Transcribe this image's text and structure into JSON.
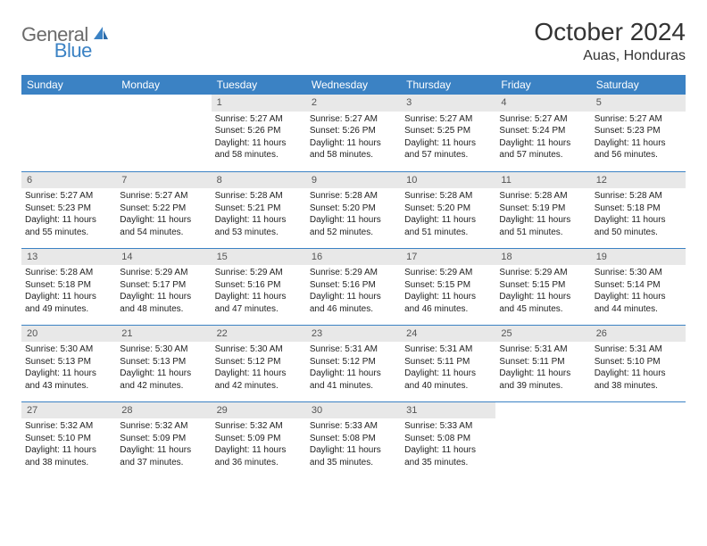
{
  "brand": {
    "part1": "General",
    "part2": "Blue"
  },
  "title": "October 2024",
  "location": "Auas, Honduras",
  "dayHeaders": [
    "Sunday",
    "Monday",
    "Tuesday",
    "Wednesday",
    "Thursday",
    "Friday",
    "Saturday"
  ],
  "colors": {
    "headerBg": "#3b82c4",
    "headerText": "#ffffff",
    "dayNumBg": "#e8e8e8",
    "logoGray": "#6b6b6b",
    "logoBlue": "#3b82c4"
  },
  "weeks": [
    [
      null,
      null,
      {
        "num": "1",
        "sunrise": "Sunrise: 5:27 AM",
        "sunset": "Sunset: 5:26 PM",
        "daylight": "Daylight: 11 hours and 58 minutes."
      },
      {
        "num": "2",
        "sunrise": "Sunrise: 5:27 AM",
        "sunset": "Sunset: 5:26 PM",
        "daylight": "Daylight: 11 hours and 58 minutes."
      },
      {
        "num": "3",
        "sunrise": "Sunrise: 5:27 AM",
        "sunset": "Sunset: 5:25 PM",
        "daylight": "Daylight: 11 hours and 57 minutes."
      },
      {
        "num": "4",
        "sunrise": "Sunrise: 5:27 AM",
        "sunset": "Sunset: 5:24 PM",
        "daylight": "Daylight: 11 hours and 57 minutes."
      },
      {
        "num": "5",
        "sunrise": "Sunrise: 5:27 AM",
        "sunset": "Sunset: 5:23 PM",
        "daylight": "Daylight: 11 hours and 56 minutes."
      }
    ],
    [
      {
        "num": "6",
        "sunrise": "Sunrise: 5:27 AM",
        "sunset": "Sunset: 5:23 PM",
        "daylight": "Daylight: 11 hours and 55 minutes."
      },
      {
        "num": "7",
        "sunrise": "Sunrise: 5:27 AM",
        "sunset": "Sunset: 5:22 PM",
        "daylight": "Daylight: 11 hours and 54 minutes."
      },
      {
        "num": "8",
        "sunrise": "Sunrise: 5:28 AM",
        "sunset": "Sunset: 5:21 PM",
        "daylight": "Daylight: 11 hours and 53 minutes."
      },
      {
        "num": "9",
        "sunrise": "Sunrise: 5:28 AM",
        "sunset": "Sunset: 5:20 PM",
        "daylight": "Daylight: 11 hours and 52 minutes."
      },
      {
        "num": "10",
        "sunrise": "Sunrise: 5:28 AM",
        "sunset": "Sunset: 5:20 PM",
        "daylight": "Daylight: 11 hours and 51 minutes."
      },
      {
        "num": "11",
        "sunrise": "Sunrise: 5:28 AM",
        "sunset": "Sunset: 5:19 PM",
        "daylight": "Daylight: 11 hours and 51 minutes."
      },
      {
        "num": "12",
        "sunrise": "Sunrise: 5:28 AM",
        "sunset": "Sunset: 5:18 PM",
        "daylight": "Daylight: 11 hours and 50 minutes."
      }
    ],
    [
      {
        "num": "13",
        "sunrise": "Sunrise: 5:28 AM",
        "sunset": "Sunset: 5:18 PM",
        "daylight": "Daylight: 11 hours and 49 minutes."
      },
      {
        "num": "14",
        "sunrise": "Sunrise: 5:29 AM",
        "sunset": "Sunset: 5:17 PM",
        "daylight": "Daylight: 11 hours and 48 minutes."
      },
      {
        "num": "15",
        "sunrise": "Sunrise: 5:29 AM",
        "sunset": "Sunset: 5:16 PM",
        "daylight": "Daylight: 11 hours and 47 minutes."
      },
      {
        "num": "16",
        "sunrise": "Sunrise: 5:29 AM",
        "sunset": "Sunset: 5:16 PM",
        "daylight": "Daylight: 11 hours and 46 minutes."
      },
      {
        "num": "17",
        "sunrise": "Sunrise: 5:29 AM",
        "sunset": "Sunset: 5:15 PM",
        "daylight": "Daylight: 11 hours and 46 minutes."
      },
      {
        "num": "18",
        "sunrise": "Sunrise: 5:29 AM",
        "sunset": "Sunset: 5:15 PM",
        "daylight": "Daylight: 11 hours and 45 minutes."
      },
      {
        "num": "19",
        "sunrise": "Sunrise: 5:30 AM",
        "sunset": "Sunset: 5:14 PM",
        "daylight": "Daylight: 11 hours and 44 minutes."
      }
    ],
    [
      {
        "num": "20",
        "sunrise": "Sunrise: 5:30 AM",
        "sunset": "Sunset: 5:13 PM",
        "daylight": "Daylight: 11 hours and 43 minutes."
      },
      {
        "num": "21",
        "sunrise": "Sunrise: 5:30 AM",
        "sunset": "Sunset: 5:13 PM",
        "daylight": "Daylight: 11 hours and 42 minutes."
      },
      {
        "num": "22",
        "sunrise": "Sunrise: 5:30 AM",
        "sunset": "Sunset: 5:12 PM",
        "daylight": "Daylight: 11 hours and 42 minutes."
      },
      {
        "num": "23",
        "sunrise": "Sunrise: 5:31 AM",
        "sunset": "Sunset: 5:12 PM",
        "daylight": "Daylight: 11 hours and 41 minutes."
      },
      {
        "num": "24",
        "sunrise": "Sunrise: 5:31 AM",
        "sunset": "Sunset: 5:11 PM",
        "daylight": "Daylight: 11 hours and 40 minutes."
      },
      {
        "num": "25",
        "sunrise": "Sunrise: 5:31 AM",
        "sunset": "Sunset: 5:11 PM",
        "daylight": "Daylight: 11 hours and 39 minutes."
      },
      {
        "num": "26",
        "sunrise": "Sunrise: 5:31 AM",
        "sunset": "Sunset: 5:10 PM",
        "daylight": "Daylight: 11 hours and 38 minutes."
      }
    ],
    [
      {
        "num": "27",
        "sunrise": "Sunrise: 5:32 AM",
        "sunset": "Sunset: 5:10 PM",
        "daylight": "Daylight: 11 hours and 38 minutes."
      },
      {
        "num": "28",
        "sunrise": "Sunrise: 5:32 AM",
        "sunset": "Sunset: 5:09 PM",
        "daylight": "Daylight: 11 hours and 37 minutes."
      },
      {
        "num": "29",
        "sunrise": "Sunrise: 5:32 AM",
        "sunset": "Sunset: 5:09 PM",
        "daylight": "Daylight: 11 hours and 36 minutes."
      },
      {
        "num": "30",
        "sunrise": "Sunrise: 5:33 AM",
        "sunset": "Sunset: 5:08 PM",
        "daylight": "Daylight: 11 hours and 35 minutes."
      },
      {
        "num": "31",
        "sunrise": "Sunrise: 5:33 AM",
        "sunset": "Sunset: 5:08 PM",
        "daylight": "Daylight: 11 hours and 35 minutes."
      },
      null,
      null
    ]
  ]
}
